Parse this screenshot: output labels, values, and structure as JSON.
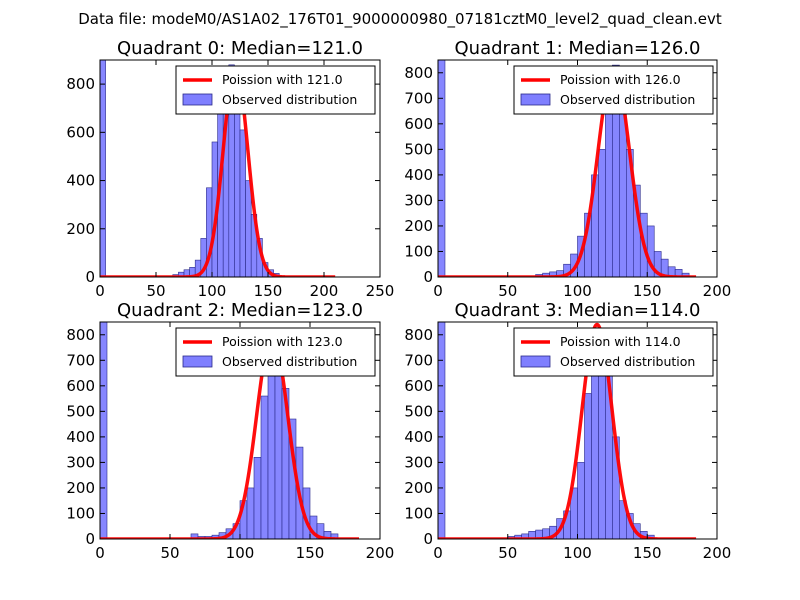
{
  "suptitle": "Data file: modeM0/AS1A02_176T01_9000000980_07181cztM0_level2_quad_clean.evt",
  "legend_labels": {
    "observed": "Observed distribution"
  },
  "chart_data": [
    {
      "type": "bar",
      "title": "Quadrant 0: Median=121.0",
      "median": 121,
      "legend_poisson": "Poission with 121.0",
      "xlim": [
        0,
        250
      ],
      "ylim": [
        0,
        900
      ],
      "xticks": [
        "0",
        "50",
        "100",
        "150",
        "200",
        "250"
      ],
      "yticks": [
        "0",
        "200",
        "400",
        "600",
        "800"
      ],
      "bin_width": 5,
      "bins_x": [
        0,
        65,
        70,
        75,
        80,
        85,
        90,
        95,
        100,
        105,
        110,
        115,
        120,
        125,
        130,
        135,
        140,
        145,
        150,
        155,
        160
      ],
      "bins_y": [
        900,
        10,
        20,
        30,
        40,
        70,
        160,
        370,
        560,
        730,
        840,
        880,
        820,
        610,
        400,
        260,
        160,
        60,
        30,
        15,
        5
      ],
      "poisson_curve": {
        "peak": 870,
        "sigma": 11,
        "x_range": [
          0,
          210
        ]
      }
    },
    {
      "type": "bar",
      "title": "Quadrant 1: Median=126.0",
      "median": 126,
      "legend_poisson": "Poission with 126.0",
      "xlim": [
        0,
        200
      ],
      "ylim": [
        0,
        850
      ],
      "xticks": [
        "0",
        "50",
        "100",
        "150",
        "200"
      ],
      "yticks": [
        "0",
        "100",
        "200",
        "300",
        "400",
        "500",
        "600",
        "700",
        "800"
      ],
      "bin_width": 5,
      "bins_x": [
        0,
        70,
        75,
        80,
        85,
        90,
        95,
        100,
        105,
        110,
        115,
        120,
        125,
        130,
        135,
        140,
        145,
        150,
        155,
        160,
        165,
        170,
        175
      ],
      "bins_y": [
        850,
        10,
        15,
        20,
        25,
        50,
        90,
        160,
        250,
        400,
        500,
        740,
        830,
        640,
        500,
        360,
        250,
        200,
        100,
        70,
        40,
        30,
        15
      ],
      "poisson_curve": {
        "peak": 820,
        "sigma": 11.2,
        "x_range": [
          0,
          185
        ]
      }
    },
    {
      "type": "bar",
      "title": "Quadrant 2: Median=123.0",
      "median": 123,
      "legend_poisson": "Poission with 123.0",
      "xlim": [
        0,
        200
      ],
      "ylim": [
        0,
        850
      ],
      "xticks": [
        "0",
        "50",
        "100",
        "150",
        "200"
      ],
      "yticks": [
        "0",
        "100",
        "200",
        "300",
        "400",
        "500",
        "600",
        "700",
        "800"
      ],
      "bin_width": 5,
      "bins_x": [
        0,
        65,
        70,
        75,
        80,
        85,
        90,
        95,
        100,
        105,
        110,
        115,
        120,
        125,
        130,
        135,
        140,
        145,
        150,
        155,
        160,
        165
      ],
      "bins_y": [
        850,
        20,
        10,
        10,
        15,
        25,
        40,
        60,
        150,
        200,
        320,
        560,
        740,
        700,
        590,
        470,
        360,
        200,
        90,
        60,
        30,
        20
      ],
      "poisson_curve": {
        "peak": 800,
        "sigma": 11.1,
        "x_range": [
          0,
          185
        ]
      }
    },
    {
      "type": "bar",
      "title": "Quadrant 3: Median=114.0",
      "median": 114,
      "legend_poisson": "Poission with 114.0",
      "xlim": [
        0,
        200
      ],
      "ylim": [
        0,
        850
      ],
      "xticks": [
        "0",
        "50",
        "100",
        "150",
        "200"
      ],
      "yticks": [
        "0",
        "100",
        "200",
        "300",
        "400",
        "500",
        "600",
        "700",
        "800"
      ],
      "bin_width": 5,
      "bins_x": [
        0,
        50,
        55,
        60,
        65,
        70,
        75,
        80,
        85,
        90,
        95,
        100,
        105,
        110,
        115,
        120,
        125,
        130,
        135,
        140,
        145,
        150
      ],
      "bins_y": [
        850,
        10,
        15,
        20,
        30,
        35,
        40,
        50,
        80,
        110,
        200,
        300,
        570,
        640,
        780,
        710,
        400,
        150,
        100,
        60,
        30,
        15
      ],
      "poisson_curve": {
        "peak": 840,
        "sigma": 10.7,
        "x_range": [
          0,
          185
        ]
      }
    }
  ]
}
